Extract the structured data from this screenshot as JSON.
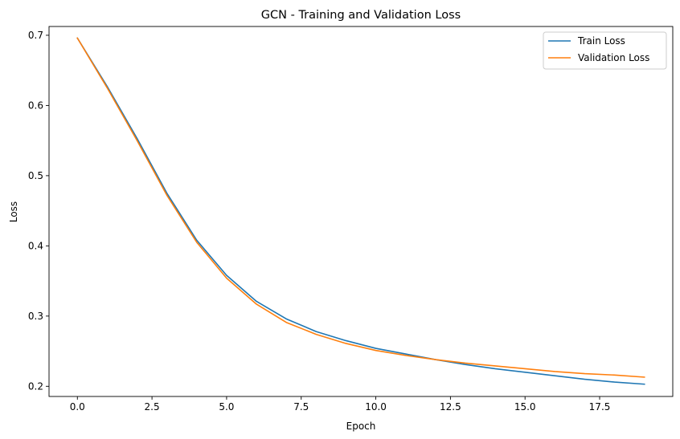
{
  "chart_data": {
    "type": "line",
    "title": "GCN - Training and Validation Loss",
    "xlabel": "Epoch",
    "ylabel": "Loss",
    "xlim": [
      -0.95,
      19.95
    ],
    "ylim": [
      0.1855,
      0.7125
    ],
    "xticks": [
      0.0,
      2.5,
      5.0,
      7.5,
      10.0,
      12.5,
      15.0,
      17.5
    ],
    "xtick_labels": [
      "0.0",
      "2.5",
      "5.0",
      "7.5",
      "10.0",
      "12.5",
      "15.0",
      "17.5"
    ],
    "yticks": [
      0.2,
      0.3,
      0.4,
      0.5,
      0.6,
      0.7
    ],
    "ytick_labels": [
      "0.2",
      "0.3",
      "0.4",
      "0.5",
      "0.6",
      "0.7"
    ],
    "grid": false,
    "legend_position": "top-right",
    "x": [
      0,
      1,
      2,
      3,
      4,
      5,
      6,
      7,
      8,
      9,
      10,
      11,
      12,
      13,
      14,
      15,
      16,
      17,
      18,
      19
    ],
    "series": [
      {
        "name": "Train Loss",
        "color": "#1f77b4",
        "values": [
          0.696,
          0.627,
          0.553,
          0.475,
          0.408,
          0.358,
          0.321,
          0.296,
          0.278,
          0.265,
          0.254,
          0.246,
          0.238,
          0.231,
          0.225,
          0.22,
          0.215,
          0.21,
          0.206,
          0.203
        ]
      },
      {
        "name": "Validation Loss",
        "color": "#ff7f0e",
        "values": [
          0.696,
          0.625,
          0.55,
          0.472,
          0.405,
          0.354,
          0.317,
          0.291,
          0.274,
          0.261,
          0.251,
          0.244,
          0.238,
          0.233,
          0.229,
          0.225,
          0.221,
          0.218,
          0.216,
          0.213
        ]
      }
    ]
  }
}
